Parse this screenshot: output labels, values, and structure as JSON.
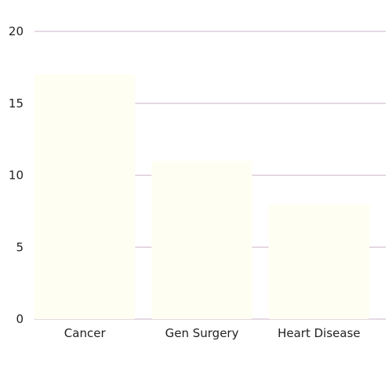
{
  "chart_data": {
    "type": "bar",
    "categories": [
      "Cancer",
      "Gen Surgery",
      "Heart Disease"
    ],
    "values": [
      17,
      11,
      8
    ],
    "ylim": [
      0,
      20
    ],
    "yticks": [
      "0",
      "5",
      "10",
      "15",
      "20"
    ],
    "grid": true,
    "colors": {
      "bar": "#fffef2",
      "grid": "#d7c2d3",
      "text": "#222222"
    }
  }
}
